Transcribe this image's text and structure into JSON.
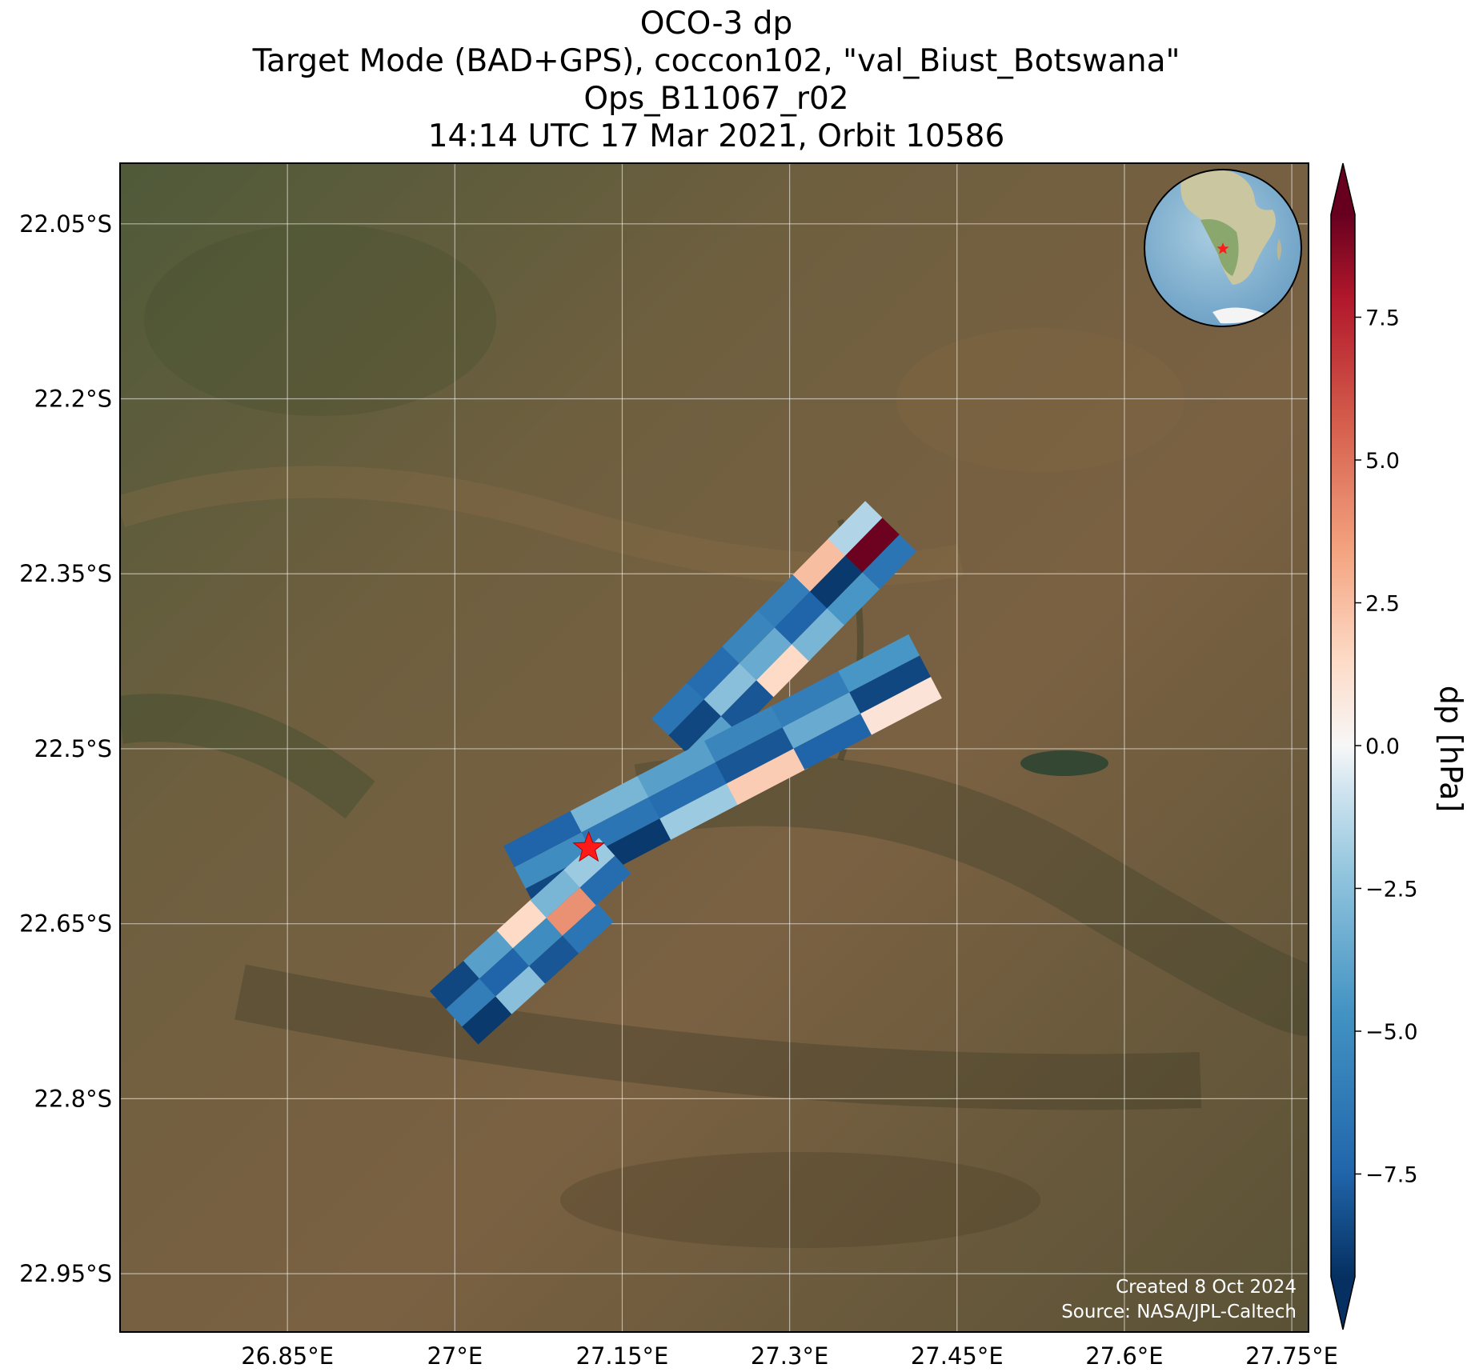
{
  "title": {
    "line1": "OCO-3 dp",
    "line2": "Target Mode (BAD+GPS), coccon102, \"val_Biust_Botswana\"",
    "line3": "Ops_B11067_r02",
    "line4": "14:14 UTC 17 Mar 2021, Orbit 10586"
  },
  "axes": {
    "lon_ticks": [
      "26.85°E",
      "27°E",
      "27.15°E",
      "27.3°E",
      "27.45°E",
      "27.6°E",
      "27.75°E"
    ],
    "lat_ticks": [
      "22.05°S",
      "22.2°S",
      "22.35°S",
      "22.5°S",
      "22.65°S",
      "22.8°S",
      "22.95°S"
    ],
    "lon_values": [
      26.85,
      27.0,
      27.15,
      27.3,
      27.45,
      27.6,
      27.75
    ],
    "lat_values": [
      -22.05,
      -22.2,
      -22.35,
      -22.5,
      -22.65,
      -22.8,
      -22.95
    ],
    "lon_range": [
      26.7,
      27.765
    ],
    "lat_range": [
      -23.0,
      -21.998
    ],
    "grid": true
  },
  "colorbar": {
    "label": "dp [hPa]",
    "ticks": [
      "7.5",
      "5.0",
      "2.5",
      "0.0",
      "−2.5",
      "−5.0",
      "−7.5"
    ],
    "tick_values": [
      7.5,
      5.0,
      2.5,
      0.0,
      -2.5,
      -5.0,
      -7.5
    ],
    "range": [
      -9.3,
      9.3
    ],
    "colormap": "RdBu_r",
    "extend": "both"
  },
  "credits": {
    "created": "Created 8 Oct 2024",
    "source": "Source: NASA/JPL-Caltech"
  },
  "target_site": {
    "marker": "red-star",
    "color": "#ff1a1a",
    "lon": 27.12,
    "lat": -22.585
  },
  "inset": {
    "type": "globe",
    "marker": "red-star"
  },
  "chart_data": {
    "type": "heatmap",
    "variable": "dp",
    "units": "hPa",
    "colormap": "RdBu_r",
    "vmin": -9.3,
    "vmax": 9.3,
    "swaths": [
      {
        "name": "swath-north",
        "lon_center": [
          27.2,
          27.39
        ],
        "lat_center": [
          -22.495,
          -22.31
        ],
        "values": [
          -6.5,
          -8.5,
          -4.0,
          -7.0,
          -2.5,
          -8.0,
          -5.5,
          -3.5,
          1.5,
          -6.0,
          -7.5,
          -3.0,
          2.5,
          -9.0,
          -4.5,
          -1.5,
          9.2,
          -6.5
        ]
      },
      {
        "name": "swath-middle",
        "lon_center": [
          27.06,
          27.42
        ],
        "lat_center": [
          -22.61,
          -22.43
        ],
        "values": [
          -7.5,
          -5.0,
          -8.5,
          -3.0,
          -6.5,
          -9.0,
          -4.0,
          -7.0,
          -2.0,
          -5.5,
          -8.0,
          2.0,
          -6.0,
          -3.5,
          -7.5,
          -4.5,
          -8.5,
          1.0
        ]
      },
      {
        "name": "swath-south",
        "lon_center": [
          27.0,
          27.15
        ],
        "lat_center": [
          -22.73,
          -22.6
        ],
        "values": [
          -8.5,
          -6.0,
          -9.0,
          -4.0,
          -7.5,
          -2.5,
          1.5,
          -5.0,
          -8.0,
          -3.0,
          4.0,
          -6.5,
          -2.0,
          -7.0
        ]
      }
    ]
  }
}
